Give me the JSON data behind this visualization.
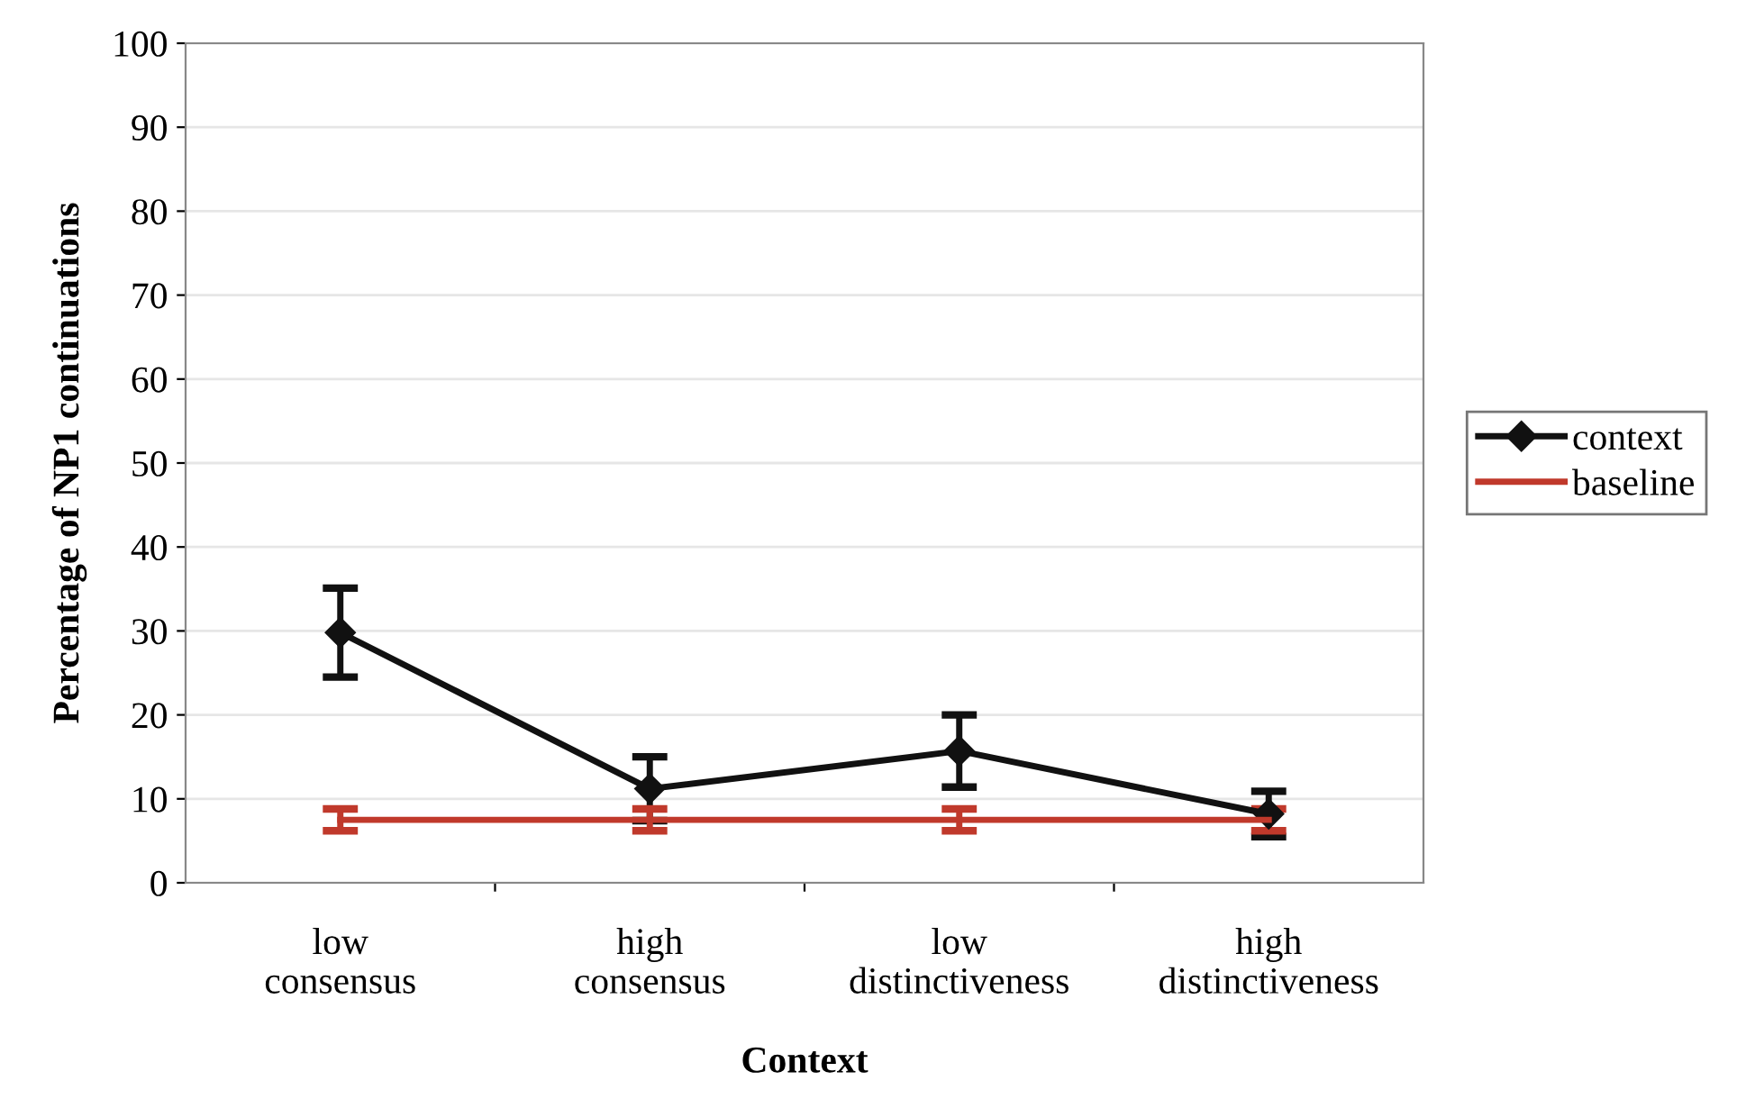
{
  "chart_data": {
    "type": "line",
    "xlabel": "Context",
    "ylabel": "Percentage of NP1 continuations",
    "categories": [
      "low\nconsensus",
      "high\nconsensus",
      "low\ndistinctiveness",
      "high\ndistinctiveness"
    ],
    "series": [
      {
        "name": "context",
        "color": "#111111",
        "values": [
          29.8,
          11.2,
          15.7,
          8.2
        ],
        "errors": [
          5.3,
          3.8,
          4.3,
          2.7
        ],
        "marker": "diamond"
      },
      {
        "name": "baseline",
        "color": "#c0392b",
        "values": [
          7.5,
          7.5,
          7.5,
          7.5
        ],
        "errors": [
          1.3,
          1.3,
          1.3,
          1.3
        ],
        "marker": "none"
      }
    ],
    "ylim": [
      0,
      100
    ],
    "yticks": [
      0,
      10,
      20,
      30,
      40,
      50,
      60,
      70,
      80,
      90,
      100
    ],
    "grid": "y",
    "legend": "right",
    "line_style": "solid"
  }
}
